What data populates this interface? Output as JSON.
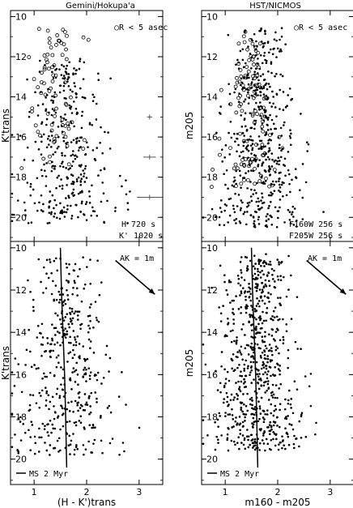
{
  "chart_data": [
    {
      "id": "tl",
      "type": "scatter",
      "title": "Gemini/Hokupa'a",
      "xlabel": "",
      "ylabel": "K'trans",
      "xlim": [
        0.55,
        3.45
      ],
      "ylim": [
        21.2,
        9.7
      ],
      "xticks": [
        1,
        2,
        3
      ],
      "yticks": [
        10,
        12,
        14,
        16,
        18,
        20
      ],
      "annotations": [
        "○R < 5 asec",
        "H 720 s",
        "K' 1020 s"
      ],
      "series": [
        {
          "marker": "open-circle",
          "count": 78,
          "x_center": 1.4,
          "x_spread": 0.32,
          "y_range": [
            10.3,
            17.6
          ],
          "seed": 11
        },
        {
          "marker": "filled-dot",
          "count": 360,
          "x_center": 1.65,
          "x_spread": 0.5,
          "y_range": [
            12.0,
            20.3
          ],
          "seed": 23
        }
      ],
      "error_bars": [
        {
          "x": 3.2,
          "y": 15.0,
          "dx": 0.05
        },
        {
          "x": 3.2,
          "y": 17.0,
          "dx": 0.12
        },
        {
          "x": 3.2,
          "y": 19.0,
          "dx": 0.24
        }
      ]
    },
    {
      "id": "tr",
      "type": "scatter",
      "title": "HST/NICMOS",
      "xlabel": "",
      "ylabel": "m205",
      "xlim": [
        0.55,
        3.45
      ],
      "ylim": [
        21.2,
        9.7
      ],
      "xticks": [
        1,
        2,
        3
      ],
      "yticks": [
        10,
        12,
        14,
        16,
        18,
        20
      ],
      "annotations": [
        "○R < 5 asec",
        "F160W 256 s",
        "F205W 256 s"
      ],
      "series": [
        {
          "marker": "open-circle",
          "count": 110,
          "x_center": 1.45,
          "x_spread": 0.3,
          "y_range": [
            10.4,
            18.5
          ],
          "seed": 37
        },
        {
          "marker": "filled-dot",
          "count": 520,
          "x_center": 1.65,
          "x_spread": 0.45,
          "y_range": [
            10.4,
            20.5
          ],
          "seed": 41
        }
      ]
    },
    {
      "id": "bl",
      "type": "scatter",
      "title": "",
      "xlabel": "(H - K')trans",
      "ylabel": "K'trans",
      "xlim": [
        0.55,
        3.45
      ],
      "ylim": [
        21.2,
        9.7
      ],
      "xticks": [
        1,
        2,
        3
      ],
      "yticks": [
        10,
        12,
        14,
        16,
        18,
        20
      ],
      "annotations": [
        "AK = 1m",
        "MS 2 Myr"
      ],
      "isochrone": {
        "x": [
          1.5,
          1.52,
          1.55,
          1.58,
          1.6,
          1.62
        ],
        "y": [
          10.0,
          12.0,
          14.0,
          16.0,
          18.0,
          20.4
        ]
      },
      "reddening_vector": {
        "x0": 2.55,
        "y0": 10.6,
        "x1": 3.3,
        "y1": 12.2
      },
      "series": [
        {
          "marker": "filled-dot",
          "count": 430,
          "x_center": 1.6,
          "x_spread": 0.55,
          "y_range": [
            10.3,
            19.8
          ],
          "seed": 53
        }
      ]
    },
    {
      "id": "br",
      "type": "scatter",
      "title": "",
      "xlabel": "m160 - m205",
      "ylabel": "m205",
      "xlim": [
        0.55,
        3.45
      ],
      "ylim": [
        21.2,
        9.7
      ],
      "xticks": [
        1,
        2,
        3
      ],
      "yticks": [
        10,
        12,
        14,
        16,
        18,
        20
      ],
      "annotations": [
        "AK = 1m",
        "MS 2 Myr"
      ],
      "isochrone": {
        "x": [
          1.5,
          1.52,
          1.55,
          1.58,
          1.6,
          1.62
        ],
        "y": [
          10.0,
          12.0,
          14.0,
          16.0,
          18.0,
          20.4
        ]
      },
      "reddening_vector": {
        "x0": 2.55,
        "y0": 10.6,
        "x1": 3.3,
        "y1": 12.2
      },
      "series": [
        {
          "marker": "filled-dot",
          "count": 700,
          "x_center": 1.6,
          "x_spread": 0.45,
          "y_range": [
            10.3,
            19.6
          ],
          "seed": 67
        }
      ]
    }
  ],
  "labels": {
    "tl_title": "Gemini/Hokupa'a",
    "tr_title": "HST/NICMOS",
    "legend_circle": "○R < 5 asec",
    "tl_exp1": "H 720 s",
    "tl_exp2": "K' 1020 s",
    "tr_exp1": "F160W 256 s",
    "tr_exp2": "F205W 256 s",
    "ak": "AK = 1m",
    "ms": "MS 2 Myr",
    "ylabel_left": "K'trans",
    "ylabel_right": "m205",
    "xlabel_left": "(H - K')trans",
    "xlabel_right": "m160 - m205"
  }
}
